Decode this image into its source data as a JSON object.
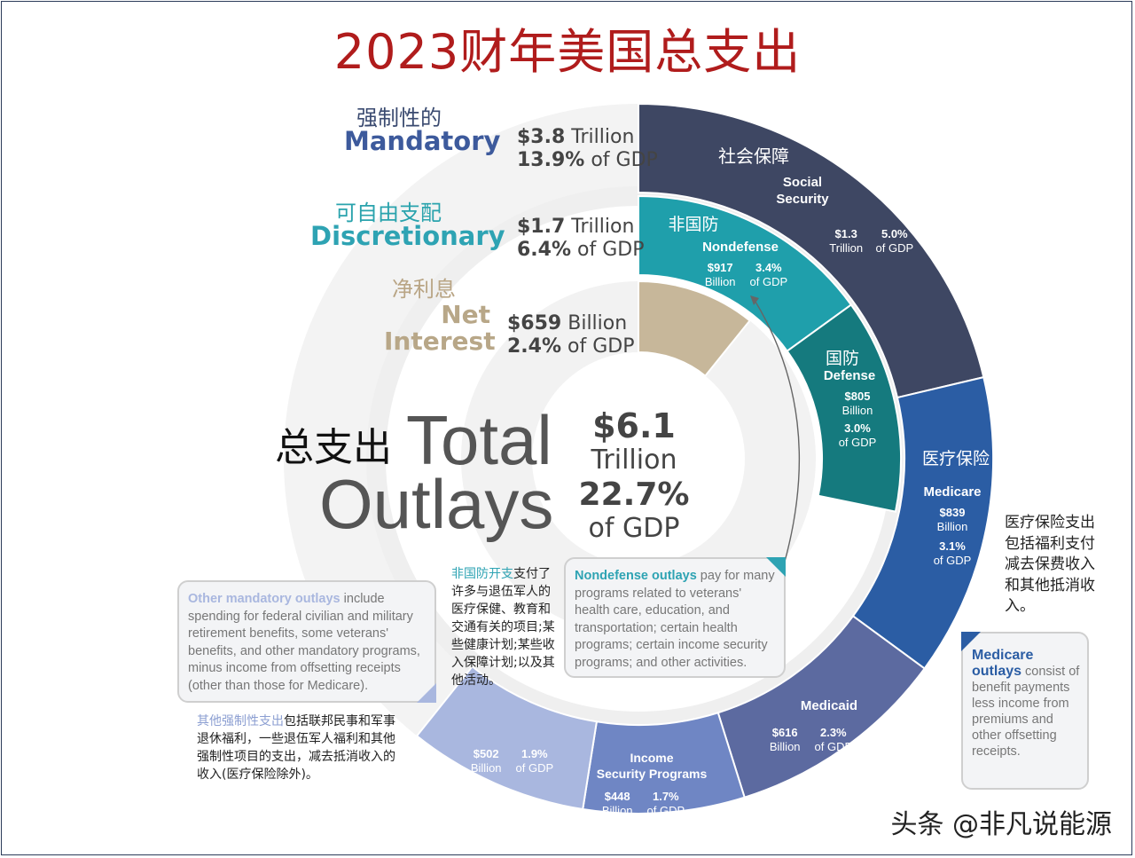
{
  "title": "2023财年美国总支出",
  "watermark": "头条 @非凡说能源",
  "categories": {
    "mandatory": {
      "cn": "强制性的",
      "en": "Mandatory",
      "amount_bold": "$3.8",
      "amount_unit": "Trillion",
      "gdp_bold": "13.9%",
      "gdp_unit": "of GDP"
    },
    "discretionary": {
      "cn": "可自由支配",
      "en": "Discretionary",
      "amount_bold": "$1.7",
      "amount_unit": "Trillion",
      "gdp_bold": "6.4%",
      "gdp_unit": "of GDP"
    },
    "net_interest": {
      "cn": "净利息",
      "en_line1": "Net",
      "en_line2": "Interest",
      "amount_bold": "$659",
      "amount_unit": "Billion",
      "gdp_bold": "2.4%",
      "gdp_unit": "of GDP"
    }
  },
  "total": {
    "cn": "总支出",
    "en_line1": "Total",
    "en_line2": "Outlays",
    "amount": "$6.1",
    "unit": "Trillion",
    "gdp": "22.7%",
    "gdp_unit": "of GDP"
  },
  "segments": {
    "social_security": {
      "cn": "社会保障",
      "en_line1": "Social",
      "en_line2": "Security",
      "amount": "$1.3",
      "amount_unit": "Trillion",
      "gdp": "5.0%",
      "gdp_unit": "of GDP"
    },
    "nondefense": {
      "cn": "非国防",
      "en": "Nondefense",
      "amount": "$917",
      "amount_unit": "Billion",
      "gdp": "3.4%",
      "gdp_unit": "of GDP"
    },
    "defense": {
      "cn": "国防",
      "en": "Defense",
      "amount": "$805",
      "amount_unit": "Billion",
      "gdp": "3.0%",
      "gdp_unit": "of GDP"
    },
    "medicare": {
      "cn": "医疗保险",
      "en": "Medicare",
      "amount": "$839",
      "amount_unit": "Billion",
      "gdp": "3.1%",
      "gdp_unit": "of GDP"
    },
    "medicaid": {
      "en": "Medicaid",
      "amount": "$616",
      "amount_unit": "Billion",
      "gdp": "2.3%",
      "gdp_unit": "of GDP"
    },
    "income_security": {
      "en_line1": "Income",
      "en_line2": "Security Programs",
      "amount": "$448",
      "amount_unit": "Billion",
      "gdp": "1.7%",
      "gdp_unit": "of GDP"
    },
    "other_mandatory": {
      "amount": "$502",
      "amount_unit": "Billion",
      "gdp": "1.9%",
      "gdp_unit": "of GDP"
    }
  },
  "notes": {
    "nondefense_box": {
      "bold": "Nondefense outlays",
      "text": " pay for many programs related to veterans' health care, education, and transportation; certain health programs; certain income security programs; and other activities."
    },
    "nondefense_cn": {
      "highlight": "非国防开支",
      "text": "支付了许多与退伍军人的医疗保健、教育和交通有关的项目;某些健康计划;某些收入保障计划;以及其他活动。"
    },
    "other_box": {
      "bold": "Other mandatory outlays",
      "text": " include spending for federal civilian and military retirement benefits, some veterans' benefits, and other mandatory programs, minus income from offsetting receipts (other than those for Medicare)."
    },
    "other_cn": {
      "highlight": "其他强制性支出",
      "text": "包括联邦民事和军事退休福利，一些退伍军人福利和其他强制性项目的支出，减去抵消收入的收入(医疗保险除外)。"
    },
    "medicare_box": {
      "bold": "Medicare outlays",
      "text": " consist of benefit payments less income from premiums and other offsetting receipts."
    },
    "medicare_cn": {
      "text": "医疗保险支出包括福利支付减去保费收入和其他抵消收入。"
    }
  },
  "chart_data": {
    "type": "pie",
    "title": "2023财年美国总支出",
    "total": {
      "value": 6.1,
      "unit": "Trillion",
      "gdp_pct": 22.7
    },
    "inner_ring": [
      {
        "name": "Mandatory",
        "value": 3.8,
        "unit": "Trillion",
        "gdp_pct": 13.9,
        "color": "#3d5a9c"
      },
      {
        "name": "Discretionary",
        "value": 1.7,
        "unit": "Trillion",
        "gdp_pct": 6.4,
        "color": "#2ea3b3"
      },
      {
        "name": "Net Interest",
        "value": 659,
        "unit": "Billion",
        "gdp_pct": 2.4,
        "color": "#c7b79a"
      }
    ],
    "outer_ring": [
      {
        "name": "Social Security",
        "value": 1300,
        "unit": "Billion",
        "gdp_pct": 5.0,
        "color": "#3e4763"
      },
      {
        "name": "Medicare",
        "value": 839,
        "unit": "Billion",
        "gdp_pct": 3.1,
        "color": "#2b5da4"
      },
      {
        "name": "Medicaid",
        "value": 616,
        "unit": "Billion",
        "gdp_pct": 2.3,
        "color": "#5c6aa0"
      },
      {
        "name": "Income Security Programs",
        "value": 448,
        "unit": "Billion",
        "gdp_pct": 1.7,
        "color": "#6f86c4"
      },
      {
        "name": "Other mandatory",
        "value": 502,
        "unit": "Billion",
        "gdp_pct": 1.9,
        "color": "#a9b7df"
      }
    ],
    "discretionary_ring": [
      {
        "name": "Nondefense",
        "value": 917,
        "unit": "Billion",
        "gdp_pct": 3.4,
        "color": "#1f9fab"
      },
      {
        "name": "Defense",
        "value": 805,
        "unit": "Billion",
        "gdp_pct": 3.0,
        "color": "#157a7e"
      }
    ],
    "net_interest_ring": [
      {
        "name": "Net Interest",
        "value": 659,
        "unit": "Billion",
        "gdp_pct": 2.4,
        "color": "#c7b79a"
      }
    ]
  }
}
